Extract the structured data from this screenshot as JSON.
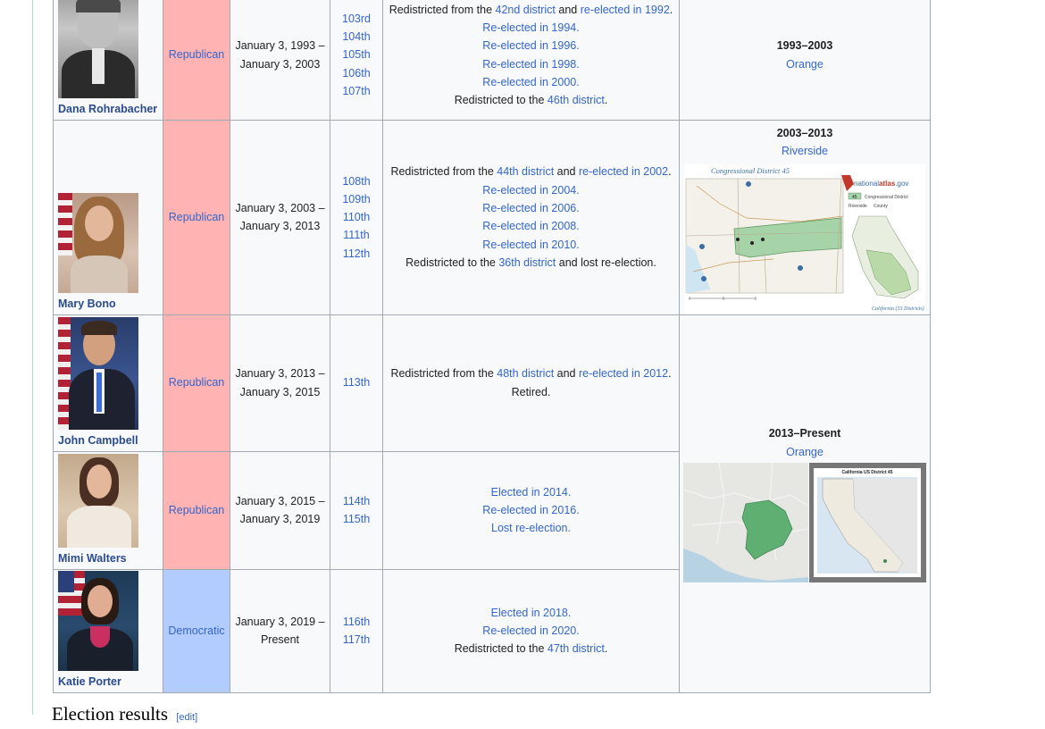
{
  "rows": [
    {
      "name": "Dana Rohrabacher",
      "party": "Republican",
      "years_line1": "January 3, 1993 –",
      "years_line2": "January 3, 2003",
      "congresses": [
        "103rd",
        "104th",
        "105th",
        "106th",
        "107th"
      ],
      "history": {
        "l1_prefix": "Redistricted from the ",
        "l1_link1": "42nd district",
        "l1_mid": " and ",
        "l1_link2": "re-elected in 1992",
        "l1_suffix": ".",
        "l2": "Re-elected in 1994.",
        "l3": "Re-elected in 1996.",
        "l4": "Re-elected in 1998.",
        "l5": "Re-elected in 2000.",
        "l6_prefix": "Redistricted to the ",
        "l6_link": "46th district",
        "l6_suffix": "."
      }
    },
    {
      "name": "Mary Bono",
      "party": "Republican",
      "years_line1": "January 3, 2003 –",
      "years_line2": "January 3, 2013",
      "congresses": [
        "108th",
        "109th",
        "110th",
        "111th",
        "112th"
      ],
      "history": {
        "l1_prefix": "Redistricted from the ",
        "l1_link1": "44th district",
        "l1_mid": " and ",
        "l1_link2": "re-elected in 2002",
        "l1_suffix": ".",
        "l2": "Re-elected in 2004.",
        "l3": "Re-elected in 2006.",
        "l4": "Re-elected in 2008.",
        "l5": "Re-elected in 2010.",
        "l6_prefix": "Redistricted to the ",
        "l6_link": "36th district",
        "l6_suffix": " and lost re-election."
      }
    },
    {
      "name": "John Campbell",
      "party": "Republican",
      "years_line1": "January 3, 2013 –",
      "years_line2": "January 3, 2015",
      "congresses": [
        "113th"
      ],
      "history": {
        "l1_prefix": "Redistricted from the ",
        "l1_link1": "48th district",
        "l1_mid": " and ",
        "l1_link2": "re-elected in 2012",
        "l1_suffix": ".",
        "l2": "Retired."
      }
    },
    {
      "name": "Mimi Walters",
      "party": "Republican",
      "years_line1": "January 3, 2015 –",
      "years_line2": "January 3, 2019",
      "congresses": [
        "114th",
        "115th"
      ],
      "history": {
        "l1": "Elected in 2014.",
        "l2": "Re-elected in 2016.",
        "l3": "Lost re-election."
      }
    },
    {
      "name": "Katie Porter",
      "party": "Democratic",
      "years_line1": "January 3, 2019 –",
      "years_line2": "Present",
      "congresses": [
        "116th",
        "117th"
      ],
      "history": {
        "l1": "Elected in 2018.",
        "l2": "Re-elected in 2020.",
        "l3_prefix": "Redistricted to the ",
        "l3_link": "47th district",
        "l3_suffix": "."
      }
    }
  ],
  "eras": [
    {
      "years": "1993–2003",
      "county": "Orange"
    },
    {
      "years": "2003–2013",
      "county": "Riverside"
    },
    {
      "years": "2013–Present",
      "county": "Orange"
    }
  ],
  "map_2003": {
    "title": "Congressional District 45",
    "brand_prefix": "national",
    "brand_bold": "atlas",
    "brand_suffix": ".gov",
    "legend_num": "45",
    "legend_label": "Congressional District",
    "county_prefix": "Riverside",
    "county_label": "County",
    "caption": "California (53 Districts)"
  },
  "map_2013": {
    "inset_title": "California US District 45"
  },
  "next_section": {
    "heading": "Election results",
    "edit": "[edit]"
  },
  "colors": {
    "republican": "#ffb3b3",
    "democratic": "#b3ccff",
    "link": "#3366cc",
    "border": "#a2a9b1"
  }
}
